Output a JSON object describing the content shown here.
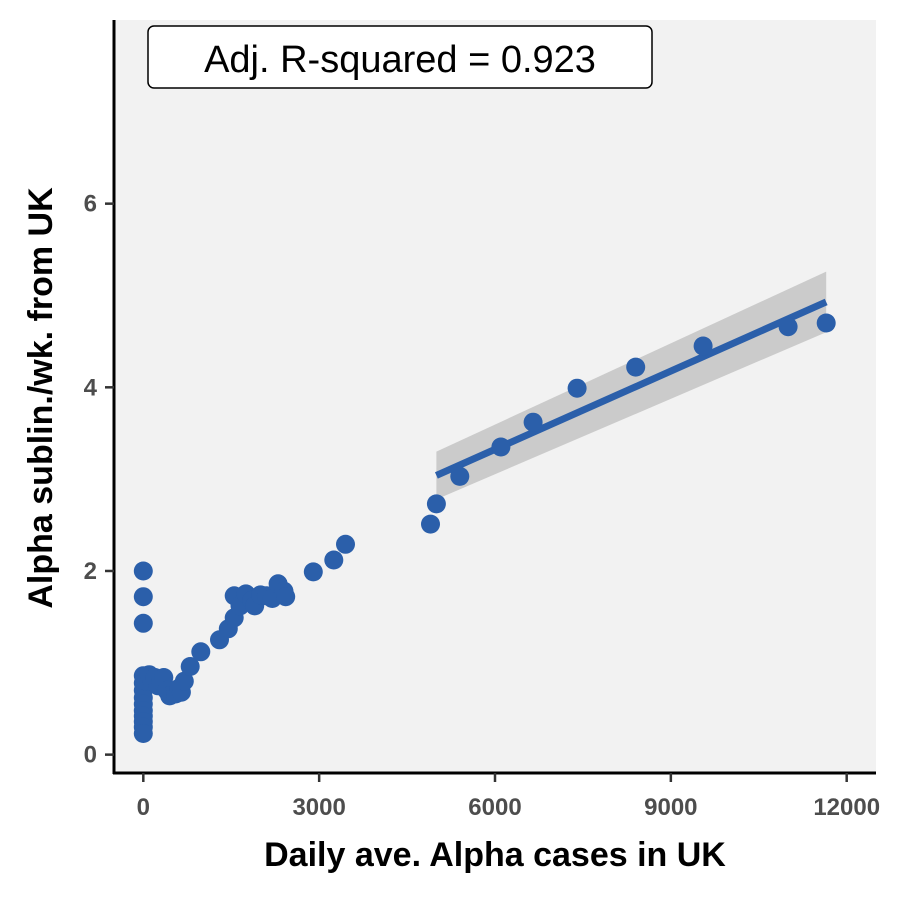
{
  "chart_data": {
    "type": "scatter",
    "title": "",
    "xlabel": "Daily ave. Alpha cases in UK",
    "ylabel": "Alpha sublin./wk. from UK",
    "xlim": [
      -500,
      12500
    ],
    "ylim": [
      -0.2,
      8.0
    ],
    "x_ticks": [
      0,
      3000,
      6000,
      9000,
      12000
    ],
    "x_tick_labels": [
      "0",
      "3000",
      "6000",
      "9000",
      "12000"
    ],
    "y_ticks": [
      0,
      2,
      4,
      6
    ],
    "y_tick_labels": [
      "0",
      "2",
      "4",
      "6"
    ],
    "grid": false,
    "annotation": "Adj. R-squared = 0.923",
    "colors": {
      "points": "#2B5FAA",
      "fit_line": "#2B5FAA",
      "confidence_band": "#BEBEBE",
      "panel_background": "#F2F2F2"
    },
    "points": [
      {
        "x": 0,
        "y": 2.0
      },
      {
        "x": 0,
        "y": 1.72
      },
      {
        "x": 0,
        "y": 1.43
      },
      {
        "x": 0,
        "y": 0.86
      },
      {
        "x": 0,
        "y": 0.78
      },
      {
        "x": 0,
        "y": 0.7
      },
      {
        "x": 0,
        "y": 0.62
      },
      {
        "x": 0,
        "y": 0.55
      },
      {
        "x": 0,
        "y": 0.48
      },
      {
        "x": 0,
        "y": 0.42
      },
      {
        "x": 0,
        "y": 0.36
      },
      {
        "x": 0,
        "y": 0.3
      },
      {
        "x": 0,
        "y": 0.23
      },
      {
        "x": 50,
        "y": 0.8
      },
      {
        "x": 100,
        "y": 0.87
      },
      {
        "x": 150,
        "y": 0.8
      },
      {
        "x": 200,
        "y": 0.84
      },
      {
        "x": 250,
        "y": 0.75
      },
      {
        "x": 300,
        "y": 0.8
      },
      {
        "x": 350,
        "y": 0.84
      },
      {
        "x": 400,
        "y": 0.7
      },
      {
        "x": 450,
        "y": 0.64
      },
      {
        "x": 550,
        "y": 0.66
      },
      {
        "x": 600,
        "y": 0.72
      },
      {
        "x": 650,
        "y": 0.68
      },
      {
        "x": 700,
        "y": 0.8
      },
      {
        "x": 800,
        "y": 0.96
      },
      {
        "x": 980,
        "y": 1.12
      },
      {
        "x": 1300,
        "y": 1.25
      },
      {
        "x": 1450,
        "y": 1.37
      },
      {
        "x": 1550,
        "y": 1.49
      },
      {
        "x": 1550,
        "y": 1.73
      },
      {
        "x": 1650,
        "y": 1.62
      },
      {
        "x": 1750,
        "y": 1.75
      },
      {
        "x": 1850,
        "y": 1.68
      },
      {
        "x": 1900,
        "y": 1.62
      },
      {
        "x": 2000,
        "y": 1.74
      },
      {
        "x": 2100,
        "y": 1.73
      },
      {
        "x": 2200,
        "y": 1.7
      },
      {
        "x": 2300,
        "y": 1.86
      },
      {
        "x": 2400,
        "y": 1.78
      },
      {
        "x": 2430,
        "y": 1.72
      },
      {
        "x": 2900,
        "y": 1.99
      },
      {
        "x": 3250,
        "y": 2.12
      },
      {
        "x": 3450,
        "y": 2.29
      },
      {
        "x": 4900,
        "y": 2.51
      },
      {
        "x": 5000,
        "y": 2.73
      },
      {
        "x": 5400,
        "y": 3.03
      },
      {
        "x": 6100,
        "y": 3.35
      },
      {
        "x": 6650,
        "y": 3.62
      },
      {
        "x": 7400,
        "y": 3.99
      },
      {
        "x": 8400,
        "y": 4.22
      },
      {
        "x": 9550,
        "y": 4.45
      },
      {
        "x": 11000,
        "y": 4.66
      },
      {
        "x": 11650,
        "y": 4.7
      }
    ],
    "fit": {
      "type": "linear",
      "x_range": [
        5000,
        11650
      ],
      "y_range": [
        3.04,
        4.93
      ],
      "ci_lower": [
        2.78,
        4.6
      ],
      "ci_upper": [
        3.3,
        5.26
      ]
    }
  }
}
